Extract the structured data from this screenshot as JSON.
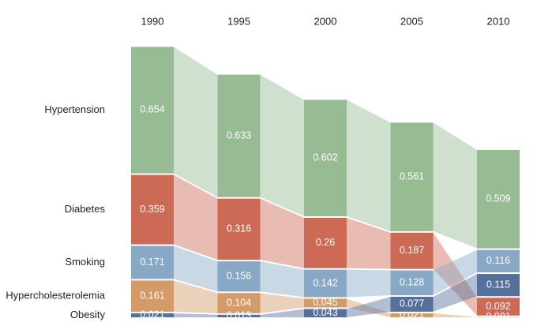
{
  "chart_data": {
    "type": "ribbon",
    "categories": [
      "1990",
      "1995",
      "2000",
      "2005",
      "2010"
    ],
    "series": [
      {
        "name": "Hypertension",
        "color": "#97bb93",
        "values": [
          0.654,
          0.633,
          0.602,
          0.561,
          0.509
        ]
      },
      {
        "name": "Diabetes",
        "color": "#cd6a55",
        "values": [
          0.359,
          0.316,
          0.26,
          0.187,
          0.092
        ]
      },
      {
        "name": "Smoking",
        "color": "#88a8c6",
        "values": [
          0.171,
          0.156,
          0.142,
          0.128,
          0.116
        ]
      },
      {
        "name": "Hypercholesterolemia",
        "color": "#d49a67",
        "values": [
          0.161,
          0.104,
          0.045,
          0.021,
          0.001
        ]
      },
      {
        "name": "Obesity",
        "color": "#55709a",
        "values": [
          0.021,
          0.013,
          0.043,
          0.077,
          0.115
        ]
      }
    ]
  }
}
